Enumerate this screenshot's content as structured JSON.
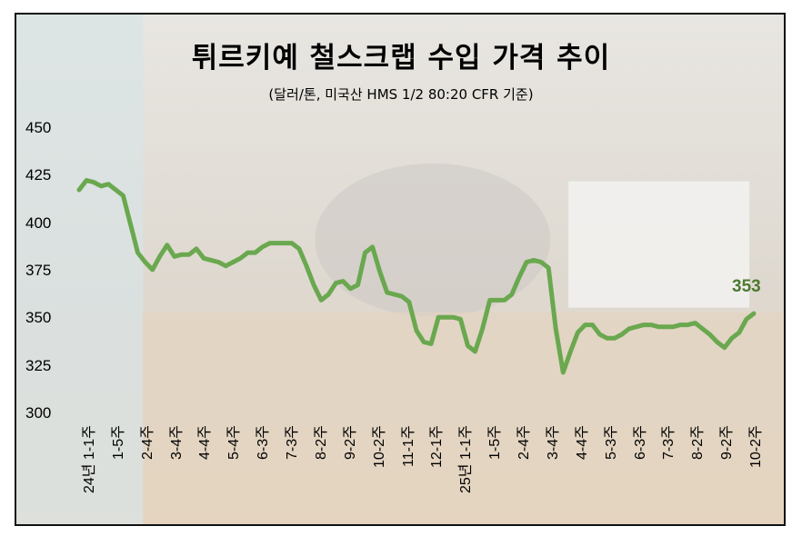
{
  "chart_data": {
    "type": "line",
    "title": "튀르키예 철스크랩 수입 가격 추이",
    "subtitle": "(달러/톤, 미국산 HMS 1/2 80:20 CFR 기준)",
    "xlabel": "",
    "ylabel": "",
    "ylim": [
      300,
      450
    ],
    "y_ticks": [
      "450",
      "425",
      "400",
      "375",
      "350",
      "325",
      "300"
    ],
    "x_tick_labels": [
      "24년 1-1주",
      "1-5주",
      "2-4주",
      "3-4주",
      "4-4주",
      "5-4주",
      "6-3주",
      "7-3주",
      "8-2주",
      "9-2주",
      "10-2주",
      "11-1주",
      "12-1주",
      "25년 1-1주",
      "1-5주",
      "2-4주",
      "3-4주",
      "4-4주",
      "5-3주",
      "6-3주",
      "7-3주",
      "8-2주",
      "9-2주",
      "10-2주"
    ],
    "grid": false,
    "line_color": "#6aa84f",
    "end_label": "353",
    "values": [
      418,
      423,
      422,
      420,
      421,
      418,
      415,
      400,
      385,
      380,
      376,
      383,
      389,
      383,
      384,
      384,
      387,
      382,
      381,
      380,
      378,
      380,
      382,
      385,
      385,
      388,
      390,
      390,
      390,
      390,
      387,
      378,
      368,
      360,
      363,
      369,
      370,
      366,
      368,
      385,
      388,
      375,
      364,
      363,
      362,
      359,
      344,
      338,
      337,
      351,
      351,
      351,
      350,
      336,
      333,
      345,
      360,
      360,
      360,
      363,
      372,
      380,
      381,
      380,
      377,
      345,
      322,
      333,
      343,
      347,
      347,
      342,
      340,
      340,
      342,
      345,
      346,
      347,
      347,
      346,
      346,
      346,
      347,
      347,
      348,
      345,
      342,
      338,
      335,
      340,
      343,
      350,
      353
    ]
  }
}
